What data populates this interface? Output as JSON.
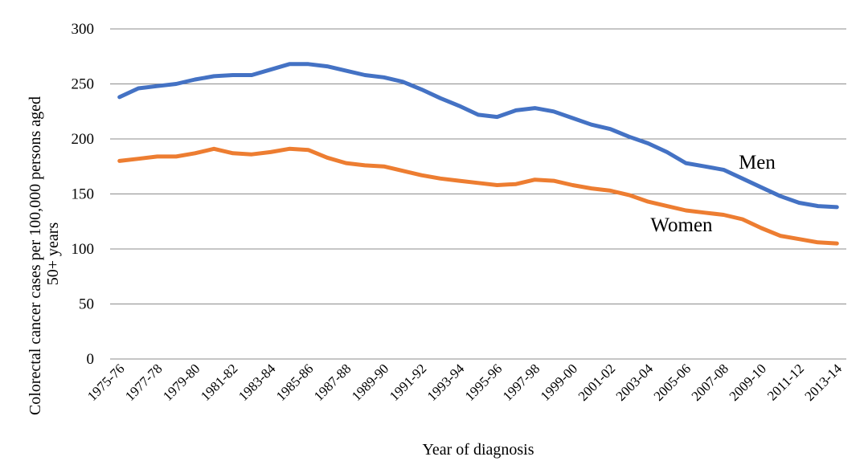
{
  "chart_data": {
    "type": "line",
    "xlabel": "Year of diagnosis",
    "ylabel": "Colorectal cancer cases per 100,000 persons aged 50+ years",
    "ylabel_lines": [
      "Colorectal cancer cases per 100,000 persons aged",
      "50+ years"
    ],
    "ylim": [
      0,
      300
    ],
    "yticks": [
      0,
      50,
      100,
      150,
      200,
      250,
      300
    ],
    "grid": true,
    "legend": "inline labels",
    "categories": [
      "1975-76",
      "1976-77",
      "1977-78",
      "1978-79",
      "1979-80",
      "1980-81",
      "1981-82",
      "1982-83",
      "1983-84",
      "1984-85",
      "1985-86",
      "1986-87",
      "1987-88",
      "1988-89",
      "1989-90",
      "1990-91",
      "1991-92",
      "1992-93",
      "1993-94",
      "1994-95",
      "1995-96",
      "1996-97",
      "1997-98",
      "1998-99",
      "1999-00",
      "2000-01",
      "2001-02",
      "2002-03",
      "2003-04",
      "2004-05",
      "2005-06",
      "2006-07",
      "2007-08",
      "2008-09",
      "2009-10",
      "2010-11",
      "2011-12",
      "2012-13",
      "2013-14"
    ],
    "tick_labels": [
      "1975-76",
      "1977-78",
      "1979-80",
      "1981-82",
      "1983-84",
      "1985-86",
      "1987-88",
      "1989-90",
      "1991-92",
      "1993-94",
      "1995-96",
      "1997-98",
      "1999-00",
      "2001-02",
      "2003-04",
      "2005-06",
      "2007-08",
      "2009-10",
      "2011-12",
      "2013-14"
    ],
    "series": [
      {
        "name": "Men",
        "color": "#4472C4",
        "values": [
          238,
          246,
          248,
          250,
          254,
          257,
          258,
          258,
          263,
          268,
          268,
          266,
          262,
          258,
          256,
          252,
          245,
          237,
          230,
          222,
          220,
          226,
          228,
          225,
          219,
          213,
          209,
          202,
          196,
          188,
          178,
          175,
          172,
          164,
          156,
          148,
          142,
          139,
          138
        ]
      },
      {
        "name": "Women",
        "color": "#ED7D31",
        "values": [
          180,
          182,
          184,
          184,
          187,
          191,
          187,
          186,
          188,
          191,
          190,
          183,
          178,
          176,
          175,
          171,
          167,
          164,
          162,
          160,
          158,
          159,
          163,
          162,
          158,
          155,
          153,
          149,
          143,
          139,
          135,
          133,
          131,
          127,
          119,
          112,
          109,
          106,
          105
        ]
      }
    ]
  }
}
